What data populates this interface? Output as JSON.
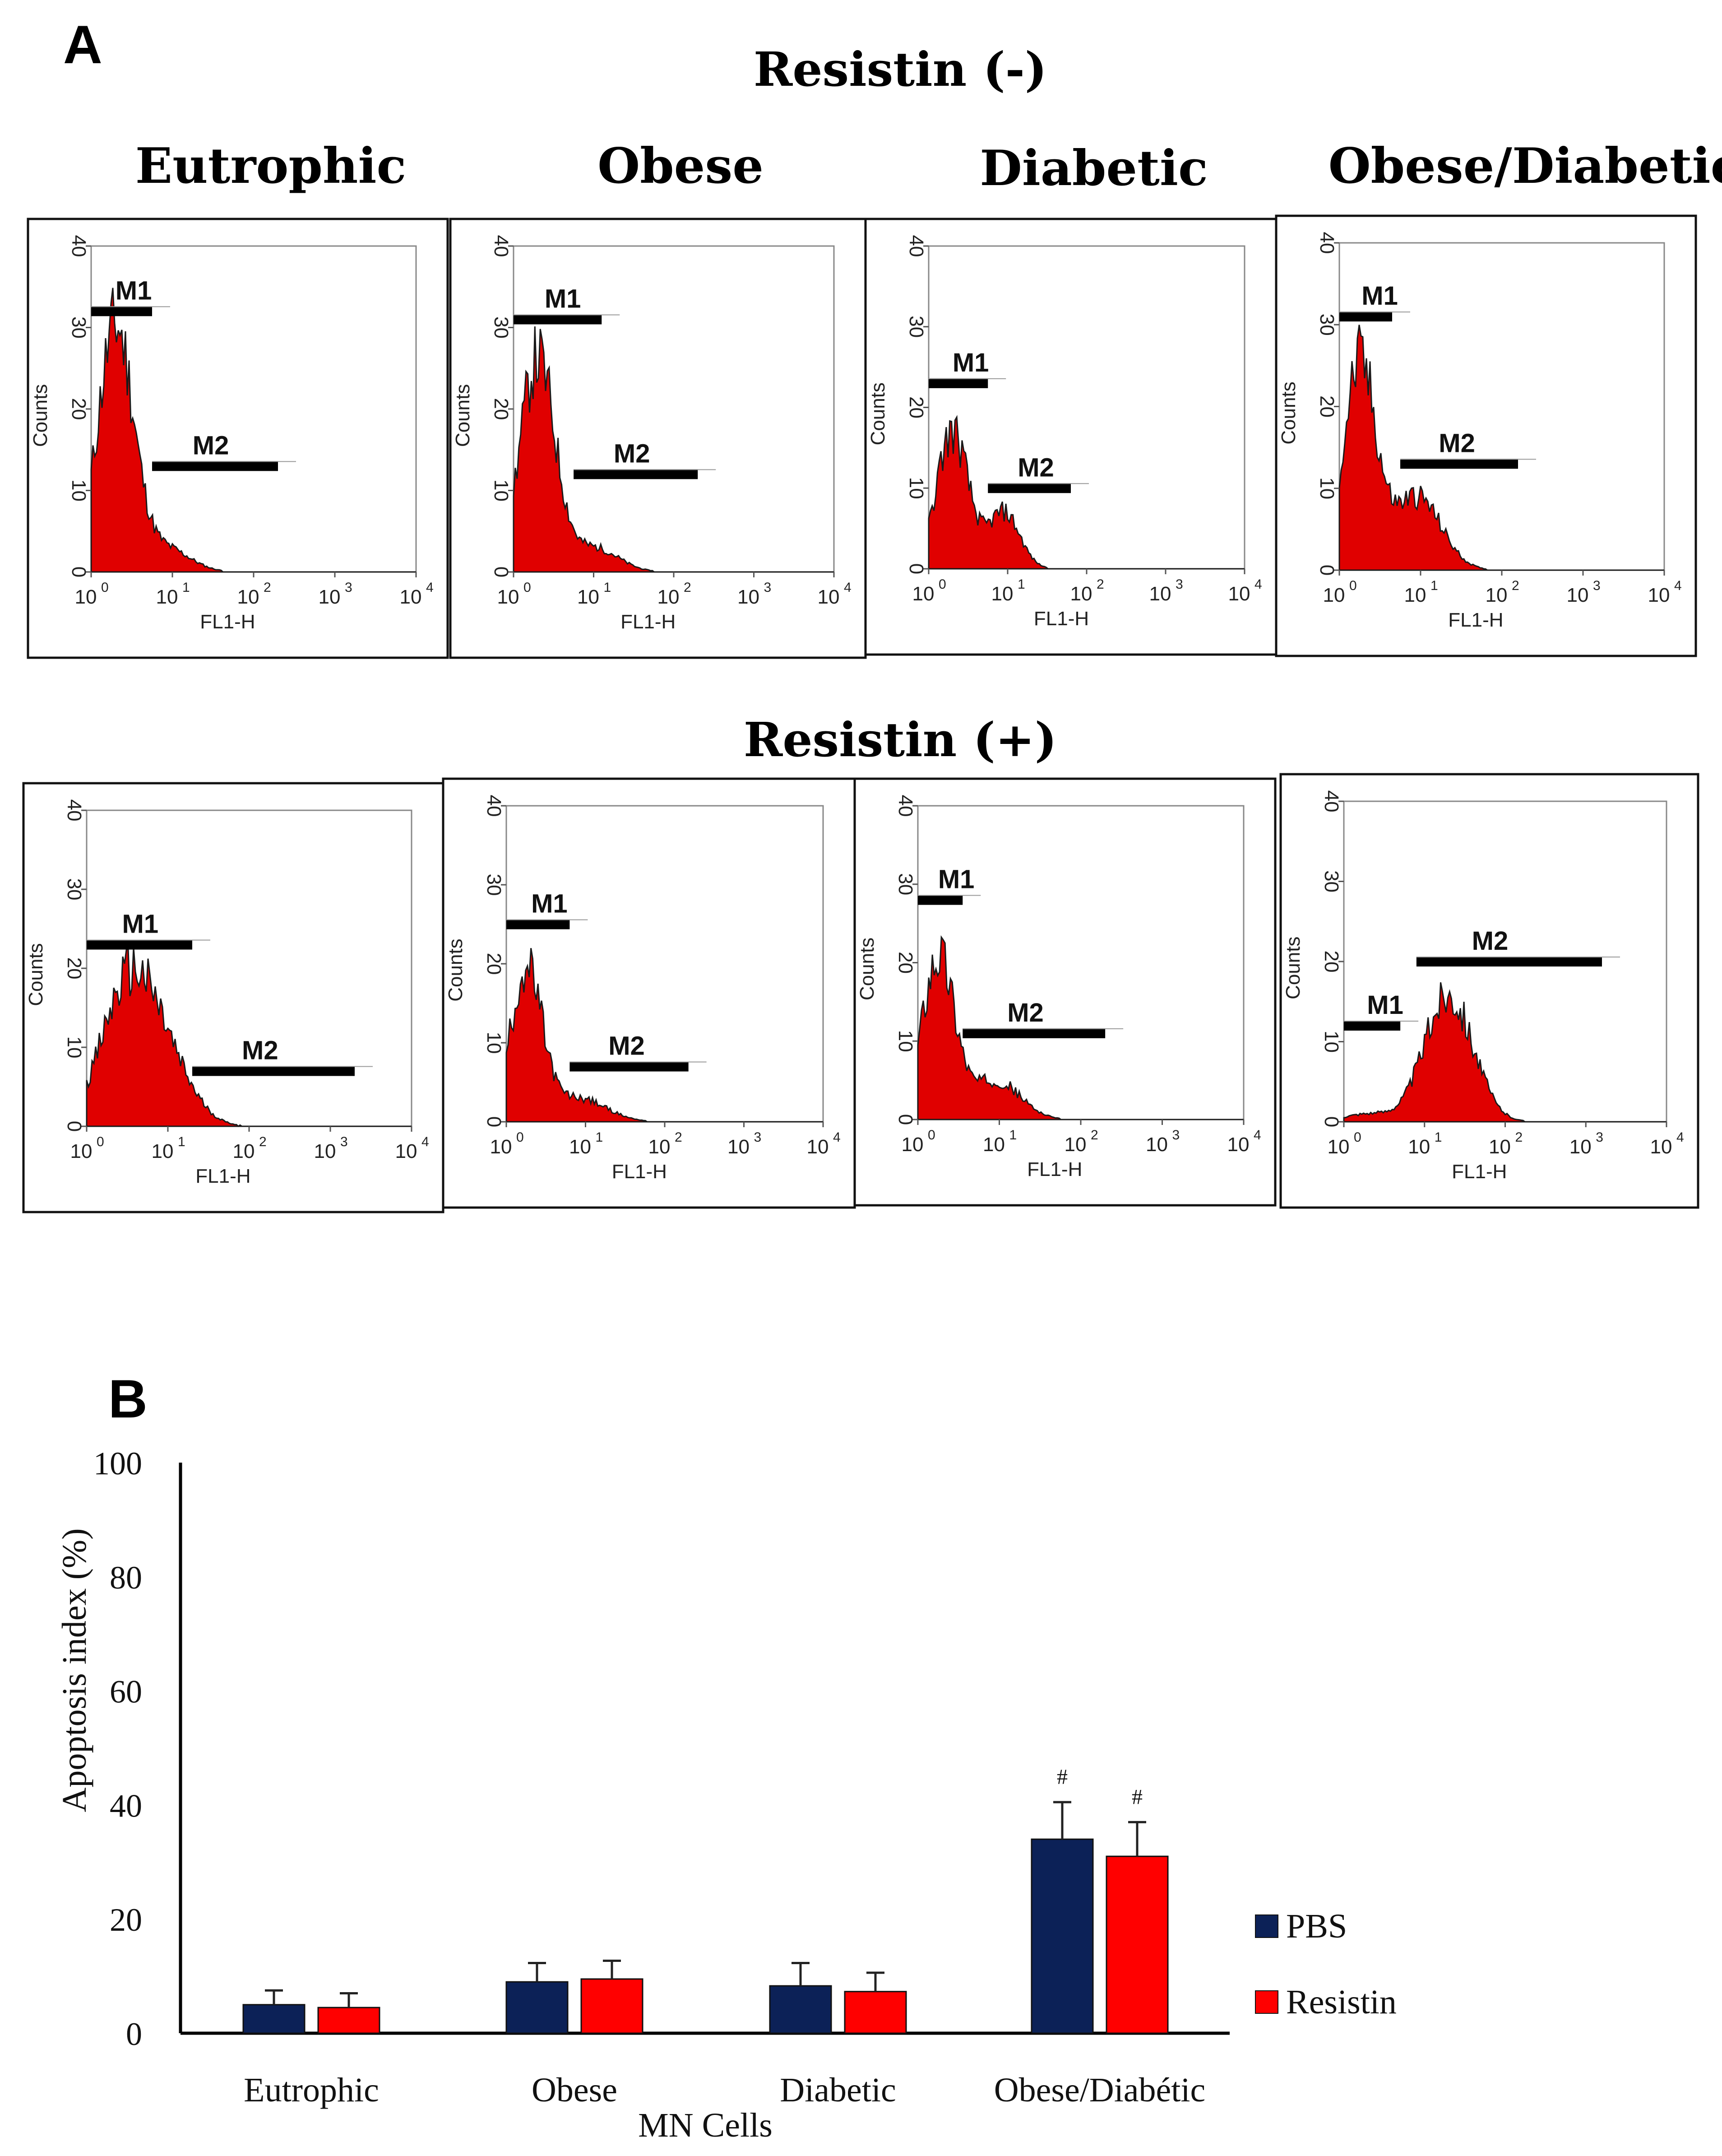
{
  "panel_a": {
    "letter": "A",
    "row_titles": [
      "Resistin (-)",
      "Resistin (+)"
    ],
    "column_titles": [
      "Eutrophic",
      "Obese",
      "Diabetic",
      "Obese/Diabetic"
    ],
    "hist_axes": {
      "ylabel": "Counts",
      "xlabel": "FL1-H",
      "yticks": [
        "0",
        "10",
        "20",
        "30",
        "40"
      ],
      "xtick_base": "10",
      "xtick_exps": [
        "0",
        "1",
        "2",
        "3",
        "4"
      ],
      "ylim": [
        0,
        40
      ],
      "xlim_log10": [
        0,
        4
      ]
    },
    "gate_labels": [
      "M1",
      "M2"
    ]
  },
  "chart_data": [
    {
      "type": "area",
      "name": "flow-cytometry-histograms",
      "x_scale": "log10",
      "xlim_log10": [
        0,
        4
      ],
      "ylim": [
        0,
        40
      ],
      "histograms": [
        {
          "row": "Resistin (-)",
          "group": "Eutrophic",
          "peak_log10": 0.3,
          "peak_counts": 30,
          "spread": 0.22,
          "secondary_log10": 0.9,
          "secondary_counts": 3,
          "secondary_spread": 0.3,
          "gates": [
            {
              "name": "M1",
              "from_log10": 0.0,
              "to_log10": 0.75,
              "level": 32
            },
            {
              "name": "M2",
              "from_log10": 0.75,
              "to_log10": 2.3,
              "level": 13
            }
          ]
        },
        {
          "row": "Resistin (-)",
          "group": "Obese",
          "peak_log10": 0.3,
          "peak_counts": 26,
          "spread": 0.22,
          "secondary_log10": 1.0,
          "secondary_counts": 3,
          "secondary_spread": 0.3,
          "gates": [
            {
              "name": "M1",
              "from_log10": 0.0,
              "to_log10": 1.1,
              "level": 31
            },
            {
              "name": "M2",
              "from_log10": 0.75,
              "to_log10": 2.3,
              "level": 12
            }
          ]
        },
        {
          "row": "Resistin (-)",
          "group": "Diabetic",
          "peak_log10": 0.3,
          "peak_counts": 17,
          "spread": 0.2,
          "secondary_log10": 0.95,
          "secondary_counts": 7,
          "secondary_spread": 0.2,
          "gates": [
            {
              "name": "M1",
              "from_log10": 0.0,
              "to_log10": 0.75,
              "level": 23
            },
            {
              "name": "M2",
              "from_log10": 0.75,
              "to_log10": 1.8,
              "level": 10
            }
          ]
        },
        {
          "row": "Resistin (-)",
          "group": "Obese/Diabetic",
          "peak_log10": 0.25,
          "peak_counts": 25,
          "spread": 0.2,
          "secondary_log10": 0.95,
          "secondary_counts": 9,
          "secondary_spread": 0.3,
          "gates": [
            {
              "name": "M1",
              "from_log10": 0.0,
              "to_log10": 0.65,
              "level": 31
            },
            {
              "name": "M2",
              "from_log10": 0.75,
              "to_log10": 2.2,
              "level": 13
            }
          ]
        },
        {
          "row": "Resistin (+)",
          "group": "Eutrophic",
          "peak_log10": 0.55,
          "peak_counts": 19,
          "spread": 0.35,
          "secondary_log10": 1.1,
          "secondary_counts": 4,
          "secondary_spread": 0.3,
          "gates": [
            {
              "name": "M1",
              "from_log10": 0.0,
              "to_log10": 1.3,
              "level": 23
            },
            {
              "name": "M2",
              "from_log10": 1.3,
              "to_log10": 3.3,
              "level": 7
            }
          ]
        },
        {
          "row": "Resistin (+)",
          "group": "Obese",
          "peak_log10": 0.25,
          "peak_counts": 19,
          "spread": 0.2,
          "secondary_log10": 0.9,
          "secondary_counts": 3,
          "secondary_spread": 0.35,
          "gates": [
            {
              "name": "M1",
              "from_log10": 0.0,
              "to_log10": 0.8,
              "level": 25
            },
            {
              "name": "M2",
              "from_log10": 0.8,
              "to_log10": 2.3,
              "level": 7
            }
          ]
        },
        {
          "row": "Resistin (+)",
          "group": "Diabetic",
          "peak_log10": 0.25,
          "peak_counts": 21,
          "spread": 0.2,
          "secondary_log10": 0.95,
          "secondary_counts": 5,
          "secondary_spread": 0.3,
          "gates": [
            {
              "name": "M1",
              "from_log10": 0.0,
              "to_log10": 0.55,
              "level": 28
            },
            {
              "name": "M2",
              "from_log10": 0.55,
              "to_log10": 2.3,
              "level": 11
            }
          ]
        },
        {
          "row": "Resistin (+)",
          "group": "Obese/Diabetic",
          "peak_log10": 1.3,
          "peak_counts": 16,
          "spread": 0.3,
          "secondary_log10": 0.3,
          "secondary_counts": 1,
          "secondary_spread": 0.3,
          "gates": [
            {
              "name": "M1",
              "from_log10": 0.0,
              "to_log10": 0.7,
              "level": 12
            },
            {
              "name": "M2",
              "from_log10": 0.9,
              "to_log10": 3.2,
              "level": 20
            }
          ]
        }
      ]
    },
    {
      "type": "bar",
      "name": "apoptosis-index",
      "panel_letter": "B",
      "categories": [
        "Eutrophic",
        "Obese",
        "Diabetic",
        "Obese/Diabétic"
      ],
      "series": [
        {
          "name": "PBS",
          "color": "#0c2157",
          "values": [
            5.0,
            9.0,
            8.3,
            34.0
          ],
          "errors": [
            2.5,
            3.3,
            4.0,
            6.5
          ],
          "annotations": [
            "",
            "",
            "",
            "#"
          ]
        },
        {
          "name": "Resistin",
          "color": "#ff0000",
          "values": [
            4.5,
            9.5,
            7.3,
            31.0
          ],
          "errors": [
            2.5,
            3.2,
            3.3,
            6.0
          ],
          "annotations": [
            "",
            "",
            "",
            "#"
          ]
        }
      ],
      "xlabel": "MN Cells",
      "ylabel": "Apoptosis index (%)",
      "ylim": [
        0,
        100
      ],
      "yticks": [
        0,
        20,
        40,
        60,
        80,
        100
      ],
      "grid": false,
      "legend_position": "right"
    }
  ]
}
